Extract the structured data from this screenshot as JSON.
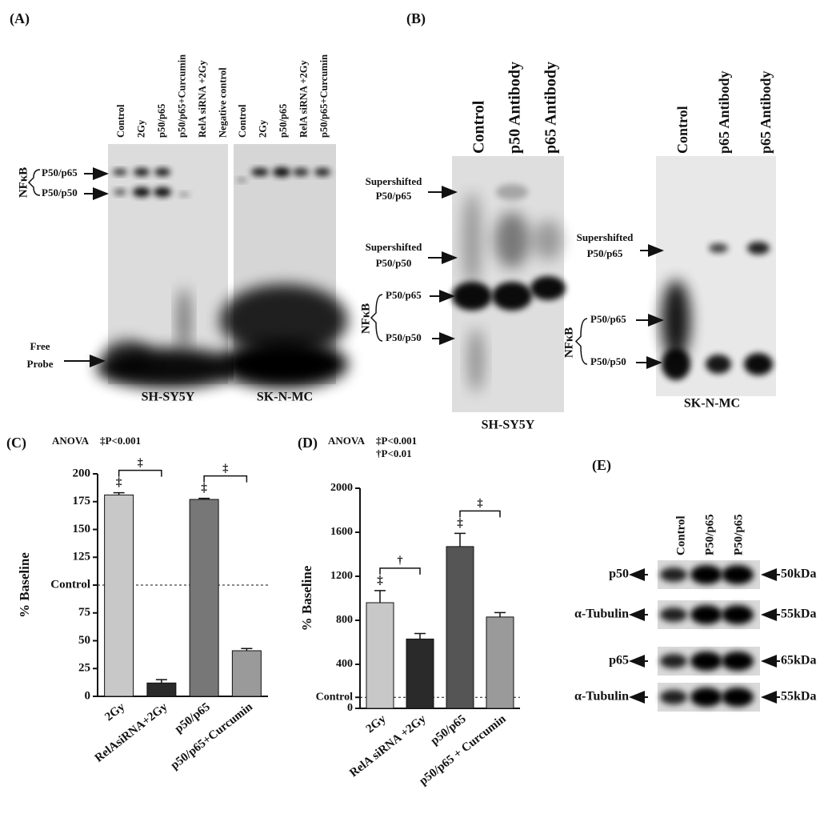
{
  "panel_a": {
    "label": "(A)",
    "lanes_left": [
      "Control",
      "2Gy",
      "p50/p65",
      "p50/p65+Curcumin",
      "RelA siRNA +2Gy",
      "Negative control"
    ],
    "lanes_right": [
      "Control",
      "2Gy",
      "p50/p65",
      "RelA siRNA +2Gy",
      "p50/p65+Curcumin"
    ],
    "complex": "NFκB",
    "band_upper": "P50/p65",
    "band_lower": "P50/p50",
    "free_probe": [
      "Free",
      "Probe"
    ],
    "cells": [
      "SH-SY5Y",
      "SK-N-MC"
    ]
  },
  "panel_b": {
    "label": "(B)",
    "lanes_left": [
      "Control",
      "p50 Antibody",
      "p65 Antibody"
    ],
    "lanes_right": [
      "Control",
      "p65 Antibody",
      "p65 Antibody"
    ],
    "left_labels": {
      "supershift_upper": [
        "Supershifted",
        "P50/p65"
      ],
      "supershift_lower": [
        "Supershifted",
        "P50/p50"
      ],
      "complex": "NFκB",
      "band_upper": "P50/p65",
      "band_lower": "P50/p50"
    },
    "right_labels": {
      "supershift": [
        "Supershifted",
        "P50/p65"
      ],
      "complex": "NFκB",
      "band_upper": "P50/p65",
      "band_lower": "P50/p50"
    },
    "cells": [
      "SH-SY5Y",
      "SK-N-MC"
    ]
  },
  "chart_data": [
    {
      "type": "bar",
      "panel_label": "(C)",
      "test": "ANOVA",
      "notes": [
        "‡P<0.001"
      ],
      "ylabel": "% Baseline",
      "categories": [
        "2Gy",
        "RelAsiRNA+2Gy",
        "p50/p65",
        "p50/p65+Curcumin"
      ],
      "values": [
        181,
        12,
        177,
        41
      ],
      "errors": [
        2,
        3,
        1,
        2
      ],
      "colors": [
        "#c8c8c8",
        "#2a2a2a",
        "#777777",
        "#9a9a9a"
      ],
      "bar_markers": [
        "‡",
        null,
        "‡",
        null
      ],
      "brackets": [
        {
          "from": 0,
          "to": 1,
          "label": "‡"
        },
        {
          "from": 2,
          "to": 3,
          "label": "‡"
        }
      ],
      "reference_line": 100,
      "ylim": [
        0,
        200
      ],
      "yticks": [
        0,
        25,
        50,
        75,
        {
          "value": 100,
          "label": "Control"
        },
        125,
        150,
        175,
        200
      ]
    },
    {
      "type": "bar",
      "panel_label": "(D)",
      "test": "ANOVA",
      "notes": [
        "‡P<0.001",
        "†P<0.01"
      ],
      "ylabel": "% Baseline",
      "categories": [
        "2Gy",
        "RelA siRNA +2Gy",
        "p50/p65",
        "p50/p65 + Curcumin"
      ],
      "values": [
        960,
        630,
        1470,
        830
      ],
      "errors": [
        110,
        50,
        120,
        40
      ],
      "colors": [
        "#c8c8c8",
        "#2a2a2a",
        "#555555",
        "#9a9a9a"
      ],
      "bar_markers": [
        "‡",
        null,
        "‡",
        null
      ],
      "brackets": [
        {
          "from": 0,
          "to": 1,
          "label": "†"
        },
        {
          "from": 2,
          "to": 3,
          "label": "‡"
        }
      ],
      "reference_line": 100,
      "ylim": [
        0,
        2000
      ],
      "yticks": [
        0,
        {
          "value": 100,
          "label": "Control"
        },
        400,
        800,
        1200,
        1600,
        2000
      ]
    }
  ],
  "panel_e": {
    "label": "(E)",
    "lanes": [
      "Control",
      "P50/p65",
      "P50/p65"
    ],
    "rows": [
      {
        "protein": "p50",
        "size": "50kDa"
      },
      {
        "protein": "α-Tubulin",
        "size": "55kDa"
      },
      {
        "protein": "p65",
        "size": "65kDa"
      },
      {
        "protein": "α-Tubulin",
        "size": "55kDa"
      }
    ]
  }
}
